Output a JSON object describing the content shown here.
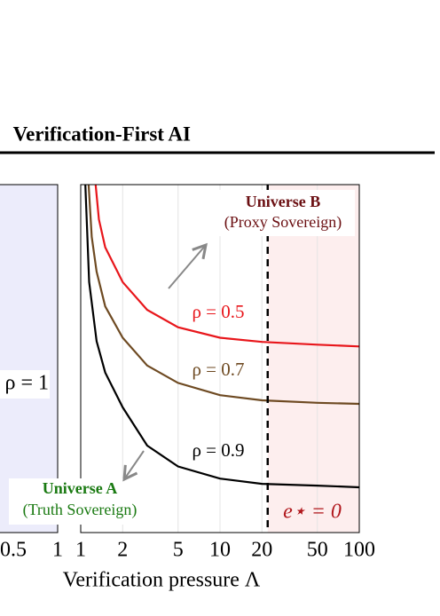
{
  "heading": "Verification-First AI",
  "chart_data": [
    {
      "type": "band",
      "color": "#ececfb",
      "xlim": [
        0,
        1
      ],
      "xticks": [
        0.5,
        1
      ],
      "annotation": "ρ = 1"
    },
    {
      "type": "line",
      "xlabel": "Verification pressure Λ",
      "xlog": true,
      "grid": true,
      "xlim": [
        1,
        100
      ],
      "xticks": [
        1,
        2,
        5,
        10,
        20,
        50,
        100
      ],
      "ylim": [
        0,
        1
      ],
      "threshold": {
        "x": 22,
        "label": "e⋆ = 0",
        "color": "#fdeeee"
      },
      "universe_b": {
        "title": "Universe B",
        "subtitle": "(Proxy Sovereign)",
        "color": "#6b0f12"
      },
      "universe_a": {
        "title": "Universe A",
        "subtitle": "(Truth Sovereign)",
        "color": "#1a7a12"
      },
      "series": [
        {
          "name": "ρ = 0.5",
          "color": "#e8161b",
          "x": [
            1.28,
            1.35,
            1.5,
            2,
            3,
            5,
            10,
            20,
            50,
            100
          ],
          "values": [
            1.0,
            0.9,
            0.82,
            0.72,
            0.64,
            0.59,
            0.56,
            0.548,
            0.54,
            0.535
          ]
        },
        {
          "name": "ρ = 0.7",
          "color": "#6e4a22",
          "x": [
            1.14,
            1.2,
            1.3,
            1.5,
            2,
            3,
            5,
            10,
            20,
            50,
            100
          ],
          "values": [
            1.0,
            0.85,
            0.75,
            0.65,
            0.56,
            0.48,
            0.43,
            0.395,
            0.38,
            0.373,
            0.37
          ]
        },
        {
          "name": "ρ = 0.9",
          "color": "#000000",
          "x": [
            1.08,
            1.15,
            1.3,
            1.5,
            2,
            3,
            5,
            10,
            20,
            50,
            100
          ],
          "values": [
            1.0,
            0.72,
            0.55,
            0.46,
            0.36,
            0.25,
            0.19,
            0.155,
            0.14,
            0.135,
            0.13
          ]
        }
      ]
    }
  ]
}
